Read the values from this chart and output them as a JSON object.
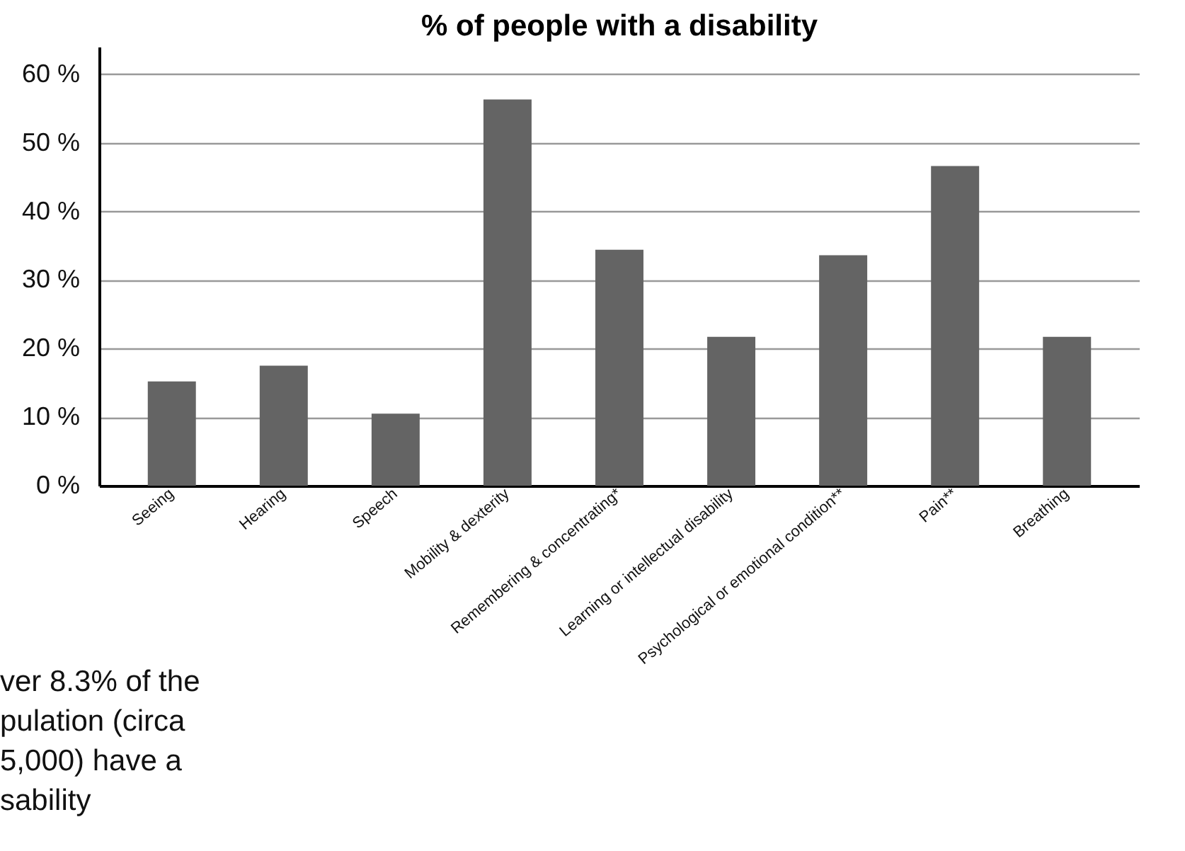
{
  "chart_data": {
    "type": "bar",
    "title": "% of people with a disability",
    "categories": [
      "Seeing",
      "Hearing",
      "Speech",
      "Mobility & dexterity",
      "Remembering & concentrating*",
      "Learning or intellectual disability",
      "Psychological or emotional condition**",
      "Pain**",
      "Breathing"
    ],
    "values": [
      15.2,
      17.5,
      10.5,
      56.3,
      34.4,
      21.7,
      33.6,
      46.6,
      21.7
    ],
    "color": "#646464",
    "ylim": [
      0,
      64
    ],
    "yticks": [
      {
        "value": 0,
        "label": "0 %"
      },
      {
        "value": 10,
        "label": "10 %"
      },
      {
        "value": 20,
        "label": "20 %"
      },
      {
        "value": 30,
        "label": "30 %"
      },
      {
        "value": 40,
        "label": "40 %"
      },
      {
        "value": 50,
        "label": "50 %"
      },
      {
        "value": 60,
        "label": "60 %"
      }
    ],
    "grid": "y",
    "annotations": [
      "ver 8.3% of the\npulation (circa\n5,000) have a\nsability"
    ]
  }
}
